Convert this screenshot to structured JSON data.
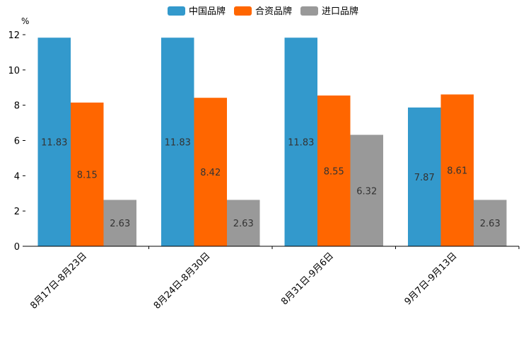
{
  "chart_data": {
    "type": "bar",
    "title": "",
    "unit": "%",
    "xlabel": "",
    "ylabel": "%",
    "ylim": [
      0,
      12
    ],
    "yticks": [
      0,
      2,
      4,
      6,
      8,
      10,
      12
    ],
    "legend_position": "top-center",
    "categories": [
      "8月17日-8月23日",
      "8月24日-8月30日",
      "8月31日-9月6日",
      "9月7日-9月13日"
    ],
    "series": [
      {
        "name": "中国品牌",
        "color": "#3399cc",
        "values": [
          11.83,
          11.83,
          11.83,
          7.87
        ]
      },
      {
        "name": "合资品牌",
        "color": "#ff6600",
        "values": [
          8.15,
          8.42,
          8.55,
          8.61
        ]
      },
      {
        "name": "进口品牌",
        "color": "#999999",
        "values": [
          2.63,
          2.63,
          6.32,
          2.63
        ]
      }
    ]
  }
}
